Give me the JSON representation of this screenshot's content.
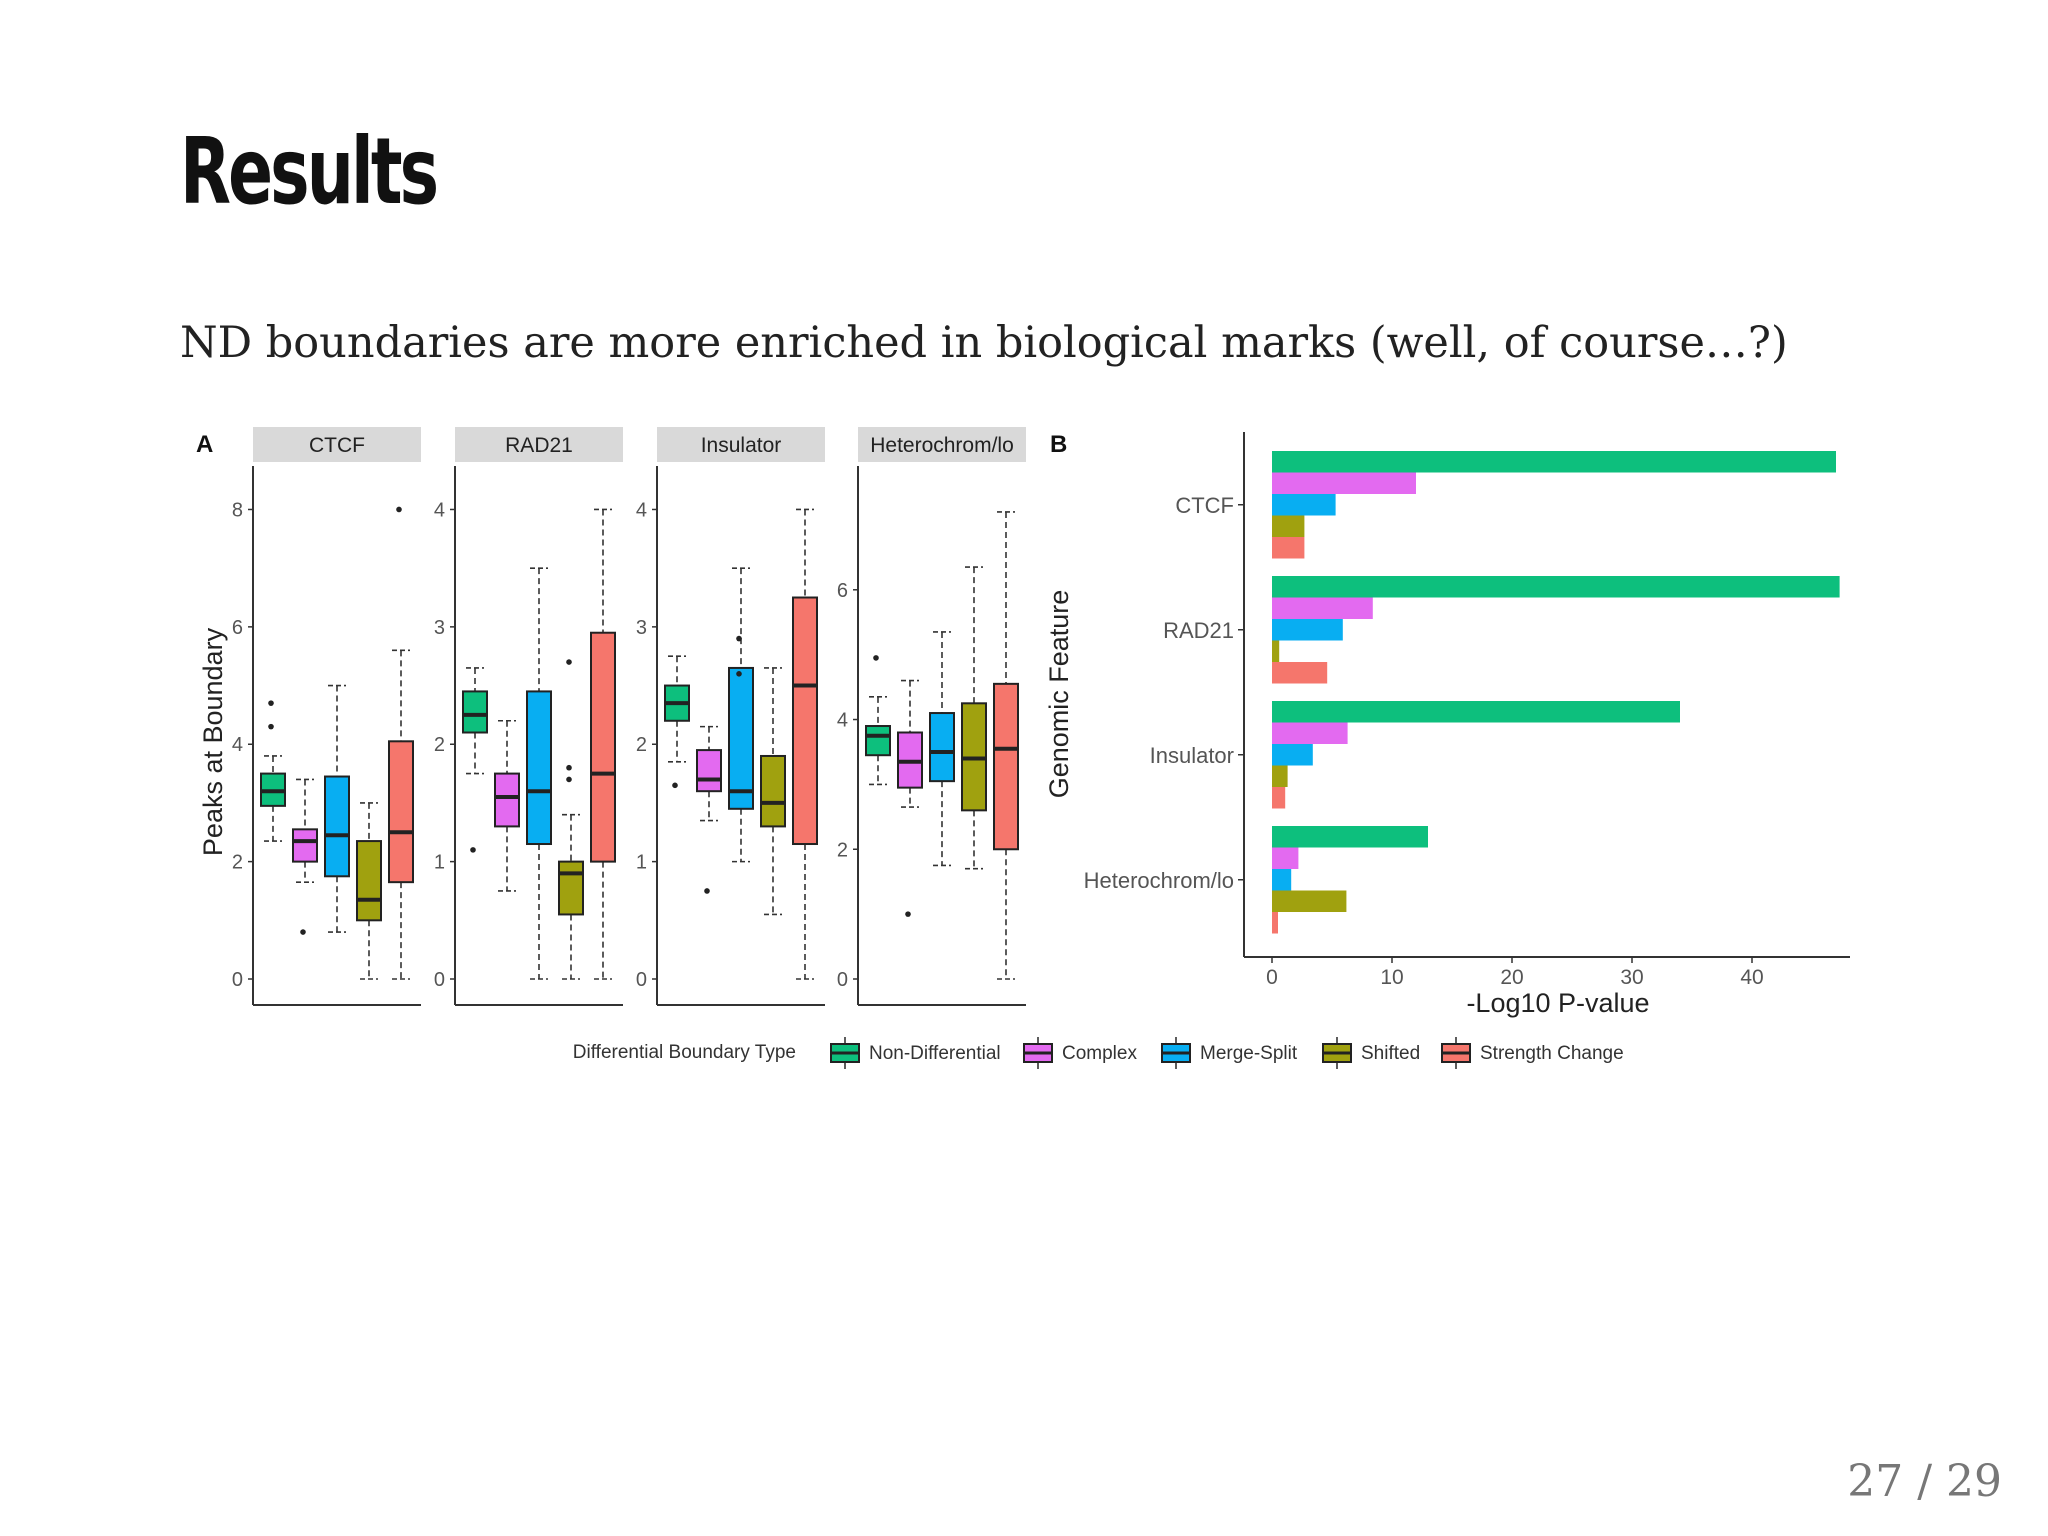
{
  "slide": {
    "title": "Results",
    "text": "ND boundaries are more enriched in biological marks (well, of course…?)",
    "page_number": "27 / 29"
  },
  "colors": {
    "Non-Differential": "#0dbf7d",
    "Complex": "#e36af0",
    "Merge-Split": "#08aef2",
    "Shifted": "#a0a10f",
    "Strength Change": "#f5766c"
  },
  "chart_data": [
    {
      "type": "box",
      "panel_label": "A",
      "ylabel": "Peaks at Boundary",
      "legend_title": "Differential Boundary Type",
      "series_names": [
        "Non-Differential",
        "Complex",
        "Merge-Split",
        "Shifted",
        "Strength Change"
      ],
      "facets": [
        {
          "name": "CTCF",
          "ylim": [
            0,
            8.4
          ],
          "yticks": [
            0,
            2,
            4,
            6,
            8
          ],
          "boxes": [
            {
              "series": "Non-Differential",
              "whisker_low": 2.35,
              "q1": 2.95,
              "median": 3.2,
              "q3": 3.5,
              "whisker_high": 3.8,
              "outliers": [
                4.3,
                4.7
              ]
            },
            {
              "series": "Complex",
              "whisker_low": 1.65,
              "q1": 2.0,
              "median": 2.35,
              "q3": 2.55,
              "whisker_high": 3.4,
              "outliers": [
                0.8
              ]
            },
            {
              "series": "Merge-Split",
              "whisker_low": 0.8,
              "q1": 1.75,
              "median": 2.45,
              "q3": 3.45,
              "whisker_high": 5.0,
              "outliers": []
            },
            {
              "series": "Shifted",
              "whisker_low": 0.0,
              "q1": 1.0,
              "median": 1.35,
              "q3": 2.35,
              "whisker_high": 3.0,
              "outliers": []
            },
            {
              "series": "Strength Change",
              "whisker_low": 0.0,
              "q1": 1.65,
              "median": 2.5,
              "q3": 4.05,
              "whisker_high": 5.6,
              "outliers": [
                8.0
              ]
            }
          ]
        },
        {
          "name": "RAD21",
          "ylim": [
            0,
            4.2
          ],
          "yticks": [
            0,
            1,
            2,
            3,
            4
          ],
          "boxes": [
            {
              "series": "Non-Differential",
              "whisker_low": 1.75,
              "q1": 2.1,
              "median": 2.25,
              "q3": 2.45,
              "whisker_high": 2.65,
              "outliers": [
                1.1
              ]
            },
            {
              "series": "Complex",
              "whisker_low": 0.75,
              "q1": 1.3,
              "median": 1.55,
              "q3": 1.75,
              "whisker_high": 2.2,
              "outliers": []
            },
            {
              "series": "Merge-Split",
              "whisker_low": 0.0,
              "q1": 1.15,
              "median": 1.6,
              "q3": 2.45,
              "whisker_high": 3.5,
              "outliers": []
            },
            {
              "series": "Shifted",
              "whisker_low": 0.0,
              "q1": 0.55,
              "median": 0.9,
              "q3": 1.0,
              "whisker_high": 1.4,
              "outliers": [
                1.8,
                1.7,
                2.7
              ]
            },
            {
              "series": "Strength Change",
              "whisker_low": 0.0,
              "q1": 1.0,
              "median": 1.75,
              "q3": 2.95,
              "whisker_high": 4.0,
              "outliers": []
            }
          ]
        },
        {
          "name": "Insulator",
          "ylim": [
            0,
            4.2
          ],
          "yticks": [
            0,
            1,
            2,
            3,
            4
          ],
          "boxes": [
            {
              "series": "Non-Differential",
              "whisker_low": 1.85,
              "q1": 2.2,
              "median": 2.35,
              "q3": 2.5,
              "whisker_high": 2.75,
              "outliers": [
                1.65
              ]
            },
            {
              "series": "Complex",
              "whisker_low": 1.35,
              "q1": 1.6,
              "median": 1.7,
              "q3": 1.95,
              "whisker_high": 2.15,
              "outliers": [
                0.75
              ]
            },
            {
              "series": "Merge-Split",
              "whisker_low": 1.0,
              "q1": 1.45,
              "median": 1.6,
              "q3": 2.65,
              "whisker_high": 3.5,
              "outliers": [
                2.9,
                2.6
              ]
            },
            {
              "series": "Shifted",
              "whisker_low": 0.55,
              "q1": 1.3,
              "median": 1.5,
              "q3": 1.9,
              "whisker_high": 2.65,
              "outliers": []
            },
            {
              "series": "Strength Change",
              "whisker_low": 0.0,
              "q1": 1.15,
              "median": 2.5,
              "q3": 3.25,
              "whisker_high": 4.0,
              "outliers": []
            }
          ]
        },
        {
          "name": "Heterochrom/lo",
          "ylim": [
            0,
            7.6
          ],
          "yticks": [
            0,
            2,
            4,
            6
          ],
          "boxes": [
            {
              "series": "Non-Differential",
              "whisker_low": 3.0,
              "q1": 3.45,
              "median": 3.75,
              "q3": 3.9,
              "whisker_high": 4.35,
              "outliers": [
                4.95
              ]
            },
            {
              "series": "Complex",
              "whisker_low": 2.65,
              "q1": 2.95,
              "median": 3.35,
              "q3": 3.8,
              "whisker_high": 4.6,
              "outliers": [
                1.0
              ]
            },
            {
              "series": "Merge-Split",
              "whisker_low": 1.75,
              "q1": 3.05,
              "median": 3.5,
              "q3": 4.1,
              "whisker_high": 5.35,
              "outliers": []
            },
            {
              "series": "Shifted",
              "whisker_low": 1.7,
              "q1": 2.6,
              "median": 3.4,
              "q3": 4.25,
              "whisker_high": 6.35,
              "outliers": []
            },
            {
              "series": "Strength Change",
              "whisker_low": 0.0,
              "q1": 2.0,
              "median": 3.55,
              "q3": 4.55,
              "whisker_high": 7.2,
              "outliers": []
            }
          ]
        }
      ]
    },
    {
      "type": "bar",
      "orientation": "horizontal",
      "panel_label": "B",
      "xlabel": "-Log10 P-value",
      "ylabel": "Genomic Feature",
      "xlim": [
        0,
        48
      ],
      "xticks": [
        0,
        10,
        20,
        30,
        40
      ],
      "categories": [
        "CTCF",
        "RAD21",
        "Insulator",
        "Heterochrom/lo"
      ],
      "series": [
        {
          "name": "Non-Differential",
          "values": [
            47.0,
            47.3,
            34.0,
            13.0
          ]
        },
        {
          "name": "Complex",
          "values": [
            12.0,
            8.4,
            6.3,
            2.2
          ]
        },
        {
          "name": "Merge-Split",
          "values": [
            5.3,
            5.9,
            3.4,
            1.6
          ]
        },
        {
          "name": "Shifted",
          "values": [
            2.7,
            0.6,
            1.3,
            6.2
          ]
        },
        {
          "name": "Strength Change",
          "values": [
            2.7,
            4.6,
            1.1,
            0.5
          ]
        }
      ]
    }
  ]
}
